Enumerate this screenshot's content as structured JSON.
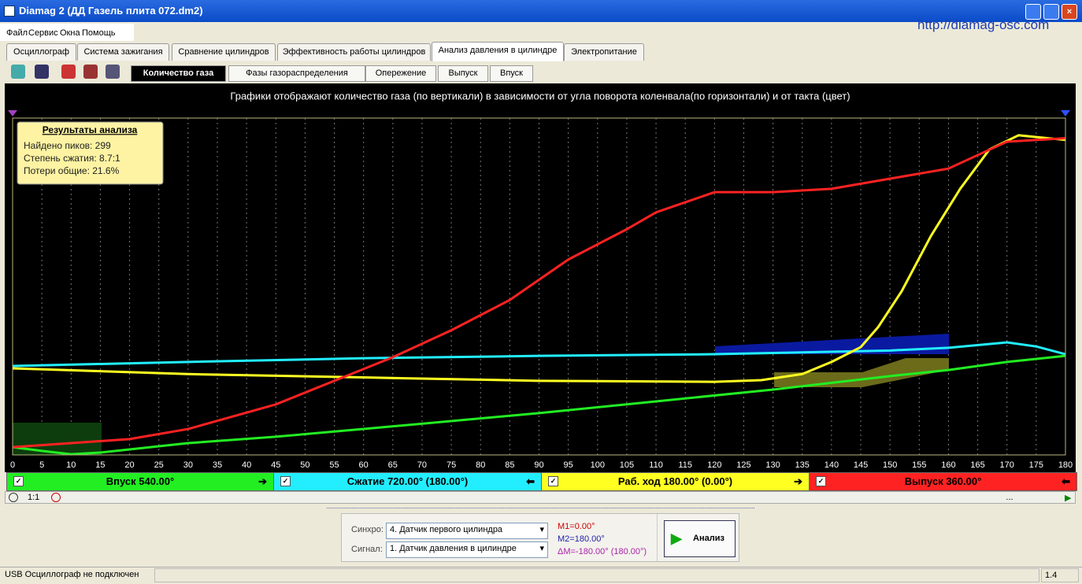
{
  "window": {
    "title": "Diamag 2 (ДД Газель плита 072.dm2)",
    "url": "http://diamag-osc.com"
  },
  "menu": [
    "Файл",
    "Сервис",
    "Окна",
    "Помощь"
  ],
  "tabs": [
    "Осциллограф",
    "Система зажигания",
    "Сравнение цилиндров",
    "Эффективность работы цилиндров",
    "Анализ давления в цилиндре",
    "Электропитание"
  ],
  "subtabs": [
    "Количество газа",
    "Фазы газораспределения",
    "Опережение",
    "Выпуск",
    "Впуск"
  ],
  "chart_data": {
    "type": "line",
    "title": "Графики отображают количество газа (по вертикали) в зависимости от угла поворота коленвала(по горизонтали) и от такта (цвет)",
    "xlim": [
      0,
      180
    ],
    "xticks": [
      0,
      5,
      10,
      15,
      20,
      25,
      30,
      35,
      40,
      45,
      50,
      55,
      60,
      65,
      70,
      75,
      80,
      85,
      90,
      95,
      100,
      105,
      110,
      115,
      120,
      125,
      130,
      135,
      140,
      145,
      150,
      155,
      160,
      165,
      170,
      175,
      180
    ],
    "ylim": [
      0,
      100
    ],
    "grid": true,
    "series": [
      {
        "name": "Впуск 540.00°",
        "color": "#22ee22",
        "x": [
          0,
          5,
          10,
          15,
          30,
          45,
          60,
          90,
          110,
          130,
          150,
          160,
          170,
          180
        ],
        "values": [
          2.3,
          1.2,
          0.2,
          0.7,
          3.5,
          5.4,
          7.7,
          12.4,
          15.9,
          19.4,
          23.4,
          25.2,
          27.6,
          29.4
        ]
      },
      {
        "name": "Сжатие 720.00° (180.00°)",
        "color": "#22eeff",
        "x": [
          0,
          30,
          60,
          90,
          120,
          150,
          160,
          170,
          175,
          180
        ],
        "values": [
          26.4,
          27.6,
          28.7,
          29.4,
          29.9,
          31,
          31.8,
          33.4,
          32.2,
          29.9
        ]
      },
      {
        "name": "Раб. ход 180.00° (0.00°)",
        "color": "#ffff22",
        "x": [
          0,
          30,
          60,
          90,
          120,
          128,
          135,
          140,
          145,
          148,
          152,
          157,
          162,
          167,
          172,
          180
        ],
        "values": [
          25.7,
          24,
          23,
          22,
          21.7,
          22.2,
          24,
          27.6,
          32,
          38,
          48.6,
          65,
          79,
          90.7,
          94.9,
          93.5
        ]
      },
      {
        "name": "Выпуск 360.00°",
        "color": "#ff2222",
        "x": [
          0,
          20,
          30,
          45,
          55,
          65,
          75,
          85,
          95,
          105,
          110,
          120,
          130,
          140,
          150,
          160,
          170,
          180
        ],
        "values": [
          2.3,
          4.7,
          7.7,
          15,
          22,
          29,
          37,
          46,
          58,
          67,
          72,
          78,
          78,
          79,
          82,
          85,
          93,
          94
        ]
      }
    ],
    "results": {
      "title": "Результаты анализа",
      "lines": [
        "Найдено пиков: 299",
        "Степень сжатия: 8.7:1",
        "Потери общие: 21.6%"
      ]
    }
  },
  "zoom": "1:1",
  "nav": "...",
  "panel": {
    "sync_label": "Синхро:",
    "sync_value": "4.  Датчик первого цилиндра",
    "signal_label": "Сигнал:",
    "signal_value": "1.  Датчик давления в цилиндре",
    "m1": "M1=0.00°",
    "m2": "M2=180.00°",
    "dm": "ΔM=-180.00° (180.00°)",
    "button": "Анализ"
  },
  "status": {
    "text": "USB Осциллограф не подключен",
    "version": "1.4"
  }
}
